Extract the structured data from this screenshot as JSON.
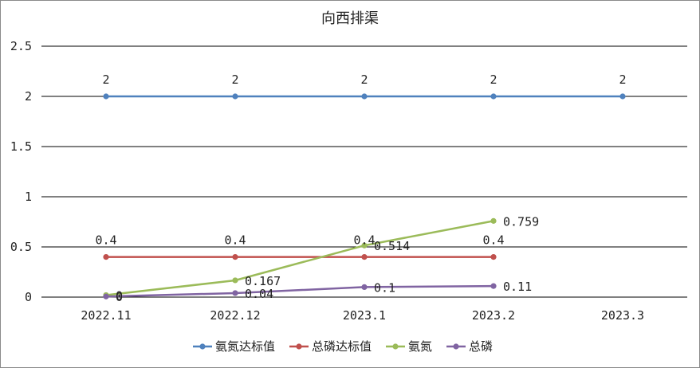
{
  "chart_data": {
    "type": "line",
    "title": "向西排渠",
    "categories": [
      "2022.11",
      "2022.12",
      "2023.1",
      "2023.2",
      "2023.3"
    ],
    "ylim": [
      0,
      2.5
    ],
    "yticks": [
      "0",
      "0.5",
      "1",
      "1.5",
      "2",
      "2.5"
    ],
    "grid": true,
    "legend_position": "bottom",
    "series": [
      {
        "name": "氨氮达标值",
        "color": "#4f81bd",
        "values": [
          2,
          2,
          2,
          2,
          2
        ],
        "labels": [
          "2",
          "2",
          "2",
          "2",
          "2"
        ]
      },
      {
        "name": "总磷达标值",
        "color": "#c0504d",
        "values": [
          0.4,
          0.4,
          0.4,
          0.4,
          null
        ],
        "labels": [
          "0.4",
          "0.4",
          "0.4",
          "0.4",
          null
        ]
      },
      {
        "name": "氨氮",
        "color": "#9bbb59",
        "values": [
          0.02,
          0.167,
          0.514,
          0.759,
          null
        ],
        "labels": [
          "0",
          "0.167",
          "0.514",
          "0.759",
          null
        ]
      },
      {
        "name": "总磷",
        "color": "#8064a2",
        "values": [
          0.006,
          0.04,
          0.1,
          0.11,
          null
        ],
        "labels": [
          "0",
          "0.04",
          "0.1",
          "0.11",
          null
        ]
      }
    ]
  }
}
